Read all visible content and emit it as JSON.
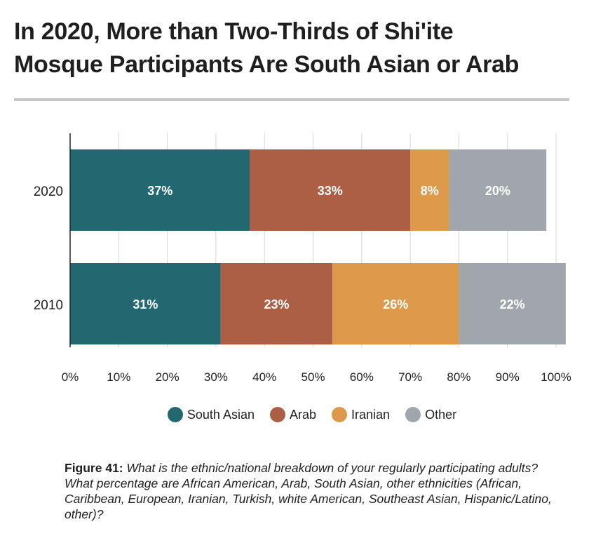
{
  "title_lines": [
    "In 2020, More than Two-Thirds of Shi'ite",
    "Mosque Participants Are South Asian or Arab"
  ],
  "caption": {
    "label": "Figure 41:",
    "text": " What is the ethnic/national breakdown of your regularly participating adults? What percentage are African American, Arab, South Asian, other ethnicities (African, Caribbean, European, Iranian, Turkish, white American, Southeast Asian, Hispanic/Latino, other)?"
  },
  "chart_data": {
    "type": "bar",
    "orientation": "horizontal",
    "stacked": true,
    "categories": [
      "2020",
      "2010"
    ],
    "series": [
      {
        "name": "South Asian",
        "values": [
          37,
          31
        ],
        "labels": [
          "37%",
          "31%"
        ],
        "color": "#236870"
      },
      {
        "name": "Arab",
        "values": [
          33,
          23
        ],
        "labels": [
          "33%",
          "23%"
        ],
        "color": "#ad5f45"
      },
      {
        "name": "Iranian",
        "values": [
          8,
          26
        ],
        "labels": [
          "8%",
          "26%"
        ],
        "color": "#dd9a4b"
      },
      {
        "name": "Other",
        "values": [
          20,
          22
        ],
        "labels": [
          "20%",
          "22%"
        ],
        "color": "#a1a6ad"
      }
    ],
    "xlim": [
      0,
      100
    ],
    "xticks": [
      "0%",
      "10%",
      "20%",
      "30%",
      "40%",
      "50%",
      "60%",
      "70%",
      "80%",
      "90%",
      "100%"
    ],
    "grid": true,
    "legend_position": "bottom"
  }
}
